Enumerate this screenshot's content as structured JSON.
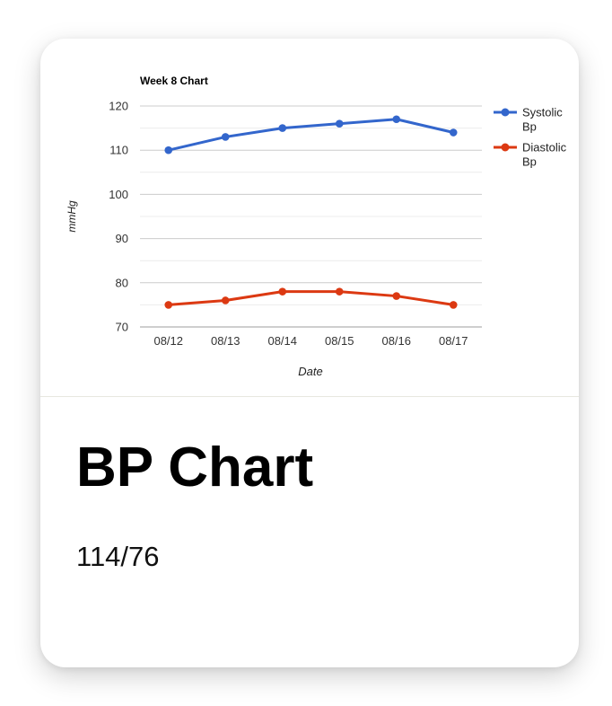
{
  "card": {
    "title": "BP Chart",
    "value": "114/76"
  },
  "chart_data": {
    "type": "line",
    "title": "Week 8 Chart",
    "xlabel": "Date",
    "ylabel": "mmHg",
    "categories": [
      "08/12",
      "08/13",
      "08/14",
      "08/15",
      "08/16",
      "08/17"
    ],
    "ylim": [
      70,
      120
    ],
    "yticks": [
      70,
      80,
      90,
      100,
      110,
      120
    ],
    "grid": true,
    "legend": "right",
    "series": [
      {
        "name": "Systolic Bp",
        "name_lines": [
          "Systolic",
          "Bp"
        ],
        "color": "#3366cc",
        "values": [
          110,
          113,
          115,
          116,
          117,
          114
        ]
      },
      {
        "name": "Diastolic Bp",
        "name_lines": [
          "Diastolic",
          "Bp"
        ],
        "color": "#dc3912",
        "values": [
          75,
          76,
          78,
          78,
          77,
          75
        ]
      }
    ]
  }
}
